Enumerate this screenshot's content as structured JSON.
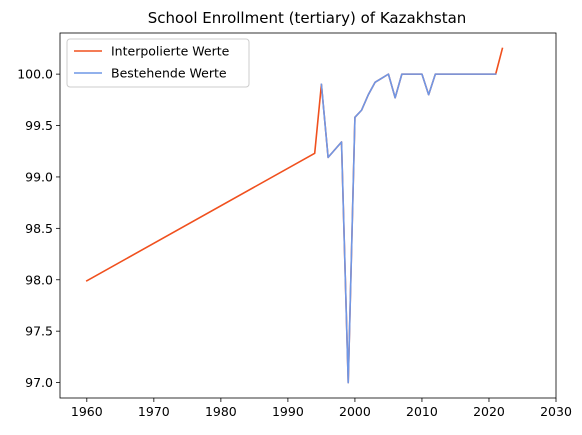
{
  "chart_data": {
    "type": "line",
    "title": "School Enrollment (tertiary) of Kazakhstan",
    "xlabel": "",
    "ylabel": "",
    "xlim": [
      1956,
      2030
    ],
    "ylim": [
      96.85,
      100.4
    ],
    "x_ticks": [
      1960,
      1970,
      1980,
      1990,
      2000,
      2010,
      2020,
      2030
    ],
    "y_ticks": [
      97.0,
      97.5,
      98.0,
      98.5,
      99.0,
      99.5,
      100.0
    ],
    "y_tick_labels": [
      "97.0",
      "97.5",
      "98.0",
      "98.5",
      "99.0",
      "99.5",
      "100.0"
    ],
    "grid": false,
    "legend_position": "top-left",
    "series": [
      {
        "name": "Interpolierte Werte",
        "color": "#f0501e",
        "x": [
          1960,
          1994,
          1995,
          1996,
          1998,
          1999,
          2000,
          2001,
          2002,
          2003,
          2005,
          2006,
          2007,
          2010,
          2011,
          2012,
          2021,
          2022
        ],
        "values": [
          97.99,
          99.23,
          99.9,
          99.19,
          99.34,
          97.0,
          99.58,
          99.65,
          99.8,
          99.92,
          100.0,
          99.77,
          100.0,
          100.0,
          99.8,
          100.0,
          100.0,
          100.25
        ]
      },
      {
        "name": "Bestehende Werte",
        "color": "#6f97e6",
        "x": [
          1995,
          1996,
          1998,
          1999,
          2000,
          2001,
          2002,
          2003,
          2005,
          2006,
          2007,
          2010,
          2011,
          2012,
          2021
        ],
        "values": [
          99.9,
          99.19,
          99.34,
          97.0,
          99.58,
          99.65,
          99.8,
          99.92,
          100.0,
          99.77,
          100.0,
          100.0,
          99.8,
          100.0,
          100.0
        ]
      }
    ]
  }
}
